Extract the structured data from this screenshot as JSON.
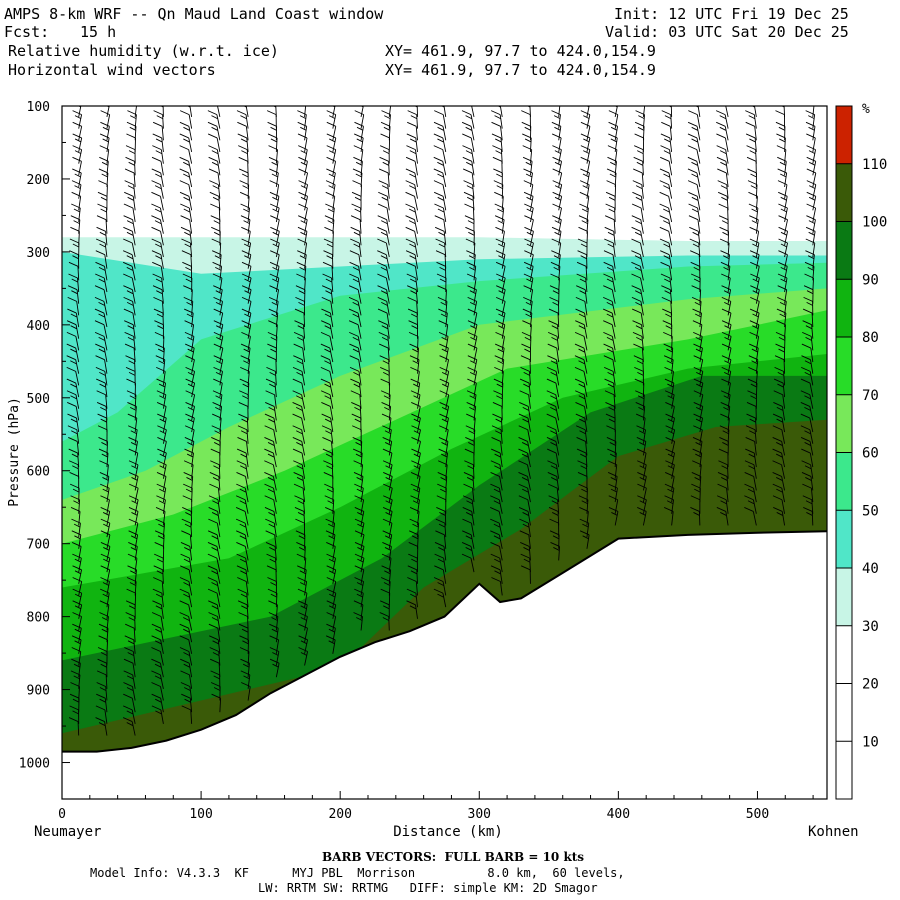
{
  "header": {
    "title": "AMPS 8-km WRF -- Qn Maud Land Coast window",
    "fcst_label": "Fcst:",
    "fcst_value": "15 h",
    "init": "Init: 12 UTC Fri 19 Dec 25",
    "valid": "Valid: 03 UTC Sat 20 Dec 25",
    "field1": "Relative humidity (w.r.t. ice)",
    "field2": "Horizontal wind vectors",
    "xy1": "XY= 461.9, 97.7 to 424.0,154.9",
    "xy2": "XY= 461.9, 97.7 to 424.0,154.9"
  },
  "footer": {
    "barb": "BARB VECTORS:  FULL BARB = 10 kts",
    "line1": "Model Info: V4.3.3  KF      MYJ PBL  Morrison          8.0 km,  60 levels,",
    "line2": "LW: RRTM SW: RRTMG   DIFF: simple KM: 2D Smagor"
  },
  "chart_data": {
    "type": "heatmap",
    "title": "Relative humidity (w.r.t. ice)",
    "xlabel": "Distance (km)",
    "ylabel": "Pressure (hPa)",
    "x_start_label": "Neumayer",
    "x_end_label": "Kohnen",
    "xlim": [
      0,
      550
    ],
    "ylim": [
      1050,
      100
    ],
    "x_ticks": [
      0,
      100,
      200,
      300,
      400,
      500
    ],
    "y_ticks": [
      100,
      200,
      300,
      400,
      500,
      600,
      700,
      800,
      900,
      1000
    ],
    "colorbar": {
      "unit": "%",
      "ticks": [
        10,
        20,
        30,
        40,
        50,
        60,
        70,
        80,
        90,
        100,
        110
      ],
      "levels": [
        {
          "range": [
            0,
            30
          ],
          "color": "#ffffff"
        },
        {
          "range": [
            30,
            40
          ],
          "color": "#c8f5e6"
        },
        {
          "range": [
            40,
            50
          ],
          "color": "#50e6c8"
        },
        {
          "range": [
            50,
            60
          ],
          "color": "#3ce88c"
        },
        {
          "range": [
            60,
            70
          ],
          "color": "#78e85a"
        },
        {
          "range": [
            70,
            80
          ],
          "color": "#28dc28"
        },
        {
          "range": [
            80,
            90
          ],
          "color": "#10b410"
        },
        {
          "range": [
            90,
            100
          ],
          "color": "#0a7a14"
        },
        {
          "range": [
            100,
            110
          ],
          "color": "#3a5a08"
        },
        {
          "range": [
            110,
            120
          ],
          "color": "#cc2200"
        }
      ]
    },
    "terrain_surface_hpa": [
      [
        0,
        985
      ],
      [
        25,
        985
      ],
      [
        50,
        980
      ],
      [
        75,
        970
      ],
      [
        100,
        955
      ],
      [
        125,
        935
      ],
      [
        150,
        905
      ],
      [
        175,
        880
      ],
      [
        200,
        855
      ],
      [
        225,
        835
      ],
      [
        250,
        820
      ],
      [
        275,
        800
      ],
      [
        300,
        755
      ],
      [
        315,
        780
      ],
      [
        330,
        775
      ],
      [
        360,
        740
      ],
      [
        400,
        693
      ],
      [
        450,
        688
      ],
      [
        500,
        685
      ],
      [
        550,
        683
      ]
    ],
    "rh_layers": [
      {
        "level": 30,
        "points": [
          [
            0,
            280
          ],
          [
            150,
            280
          ],
          [
            300,
            280
          ],
          [
            450,
            285
          ],
          [
            550,
            285
          ]
        ]
      },
      {
        "level": 40,
        "points": [
          [
            0,
            300
          ],
          [
            100,
            330
          ],
          [
            200,
            320
          ],
          [
            300,
            310
          ],
          [
            450,
            305
          ],
          [
            550,
            305
          ]
        ]
      },
      {
        "level": 50,
        "points": [
          [
            0,
            560
          ],
          [
            40,
            520
          ],
          [
            100,
            420
          ],
          [
            200,
            360
          ],
          [
            300,
            340
          ],
          [
            450,
            320
          ],
          [
            550,
            315
          ]
        ]
      },
      {
        "level": 60,
        "points": [
          [
            0,
            640
          ],
          [
            60,
            600
          ],
          [
            120,
            540
          ],
          [
            200,
            470
          ],
          [
            300,
            400
          ],
          [
            450,
            365
          ],
          [
            550,
            350
          ]
        ]
      },
      {
        "level": 70,
        "points": [
          [
            0,
            700
          ],
          [
            80,
            660
          ],
          [
            160,
            600
          ],
          [
            240,
            530
          ],
          [
            320,
            460
          ],
          [
            450,
            420
          ],
          [
            550,
            380
          ]
        ]
      },
      {
        "level": 80,
        "points": [
          [
            0,
            760
          ],
          [
            120,
            720
          ],
          [
            200,
            650
          ],
          [
            280,
            570
          ],
          [
            360,
            500
          ],
          [
            450,
            460
          ],
          [
            550,
            440
          ]
        ]
      },
      {
        "level": 90,
        "points": [
          [
            0,
            860
          ],
          [
            150,
            800
          ],
          [
            230,
            720
          ],
          [
            300,
            620
          ],
          [
            380,
            520
          ],
          [
            460,
            470
          ],
          [
            550,
            470
          ]
        ]
      },
      {
        "level": 100,
        "points": [
          [
            0,
            960
          ],
          [
            200,
            870
          ],
          [
            260,
            760
          ],
          [
            330,
            680
          ],
          [
            400,
            580
          ],
          [
            470,
            540
          ],
          [
            550,
            530
          ]
        ]
      }
    ]
  }
}
